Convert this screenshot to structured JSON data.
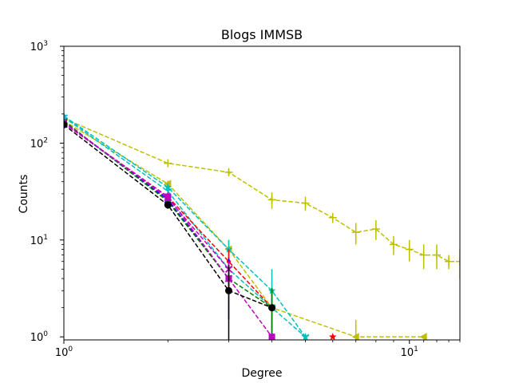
{
  "chart_data": {
    "type": "line",
    "title": "Blogs IMMSB",
    "xlabel": "Degree",
    "ylabel": "Counts",
    "xscale": "log",
    "yscale": "log",
    "xlim": [
      1,
      14
    ],
    "ylim": [
      0.93,
      1000
    ],
    "xticks": [
      {
        "value": 1,
        "base": "10",
        "exp": "0"
      },
      {
        "value": 10,
        "base": "10",
        "exp": "1"
      }
    ],
    "yticks": [
      {
        "value": 1,
        "base": "10",
        "exp": "0"
      },
      {
        "value": 10,
        "base": "10",
        "exp": "1"
      },
      {
        "value": 100,
        "base": "10",
        "exp": "2"
      },
      {
        "value": 1000,
        "base": "10",
        "exp": "3"
      }
    ],
    "grid": false,
    "legend": false,
    "series": [
      {
        "color": "#bfbf00",
        "marker": "plus",
        "style": "dashed",
        "points": [
          [
            1,
            180,
            0
          ],
          [
            2,
            62,
            5
          ],
          [
            3,
            50,
            4
          ],
          [
            4,
            26,
            5
          ],
          [
            5,
            24,
            4
          ],
          [
            6,
            17,
            2
          ],
          [
            7,
            12,
            3
          ],
          [
            8,
            13,
            3
          ],
          [
            9,
            9,
            2
          ],
          [
            10,
            8,
            2
          ],
          [
            11,
            7,
            2
          ],
          [
            12,
            7,
            2
          ],
          [
            13,
            6,
            1
          ],
          [
            14,
            6,
            2
          ]
        ]
      },
      {
        "color": "#bfbf00",
        "marker": "triangle-left",
        "style": "dashed",
        "points": [
          [
            1,
            170,
            0
          ],
          [
            2,
            38,
            3
          ],
          [
            3,
            8,
            2
          ],
          [
            4,
            2,
            0.8
          ],
          [
            7,
            1,
            0.5
          ],
          [
            11,
            1,
            0
          ]
        ]
      },
      {
        "color": "#00bfbf",
        "marker": "star",
        "style": "dashed",
        "points": [
          [
            1,
            190,
            0
          ],
          [
            2,
            35,
            3
          ],
          [
            3,
            8,
            2
          ],
          [
            4,
            3,
            2
          ],
          [
            5,
            1,
            0
          ]
        ]
      },
      {
        "color": "#00bfbf",
        "marker": "tri-down",
        "style": "dashed",
        "points": [
          [
            1,
            185,
            0
          ],
          [
            2,
            32,
            3
          ],
          [
            3,
            5,
            1.5
          ],
          [
            4,
            2,
            1
          ],
          [
            5,
            1,
            0
          ]
        ]
      },
      {
        "color": "#ff0000",
        "marker": "point",
        "style": "dashed",
        "points": [
          [
            1,
            160,
            0
          ],
          [
            2,
            28,
            3
          ],
          [
            3,
            6,
            2
          ],
          [
            4,
            2,
            1
          ]
        ]
      },
      {
        "color": "#ff0000",
        "marker": "star",
        "style": "dashed",
        "points": [
          [
            6,
            1,
            0
          ]
        ]
      },
      {
        "color": "#0000ff",
        "marker": "x",
        "style": "dashed",
        "points": [
          [
            1,
            165,
            0
          ],
          [
            2,
            26,
            2
          ],
          [
            3,
            4,
            2.5
          ]
        ]
      },
      {
        "color": "#008000",
        "marker": "point",
        "style": "dashed",
        "points": [
          [
            1,
            170,
            0
          ],
          [
            2,
            25,
            3
          ],
          [
            3,
            4,
            1
          ],
          [
            4,
            2,
            1.2
          ]
        ]
      },
      {
        "color": "#bf00bf",
        "marker": "x",
        "style": "dashed",
        "points": [
          [
            1,
            165,
            0
          ],
          [
            2,
            27,
            3
          ],
          [
            3,
            5,
            1
          ]
        ]
      },
      {
        "color": "#bf00bf",
        "marker": "square",
        "style": "dashed",
        "points": [
          [
            1,
            160,
            0
          ],
          [
            2,
            28,
            3
          ],
          [
            3,
            4,
            1
          ],
          [
            4,
            1,
            0
          ]
        ]
      },
      {
        "color": "#000000",
        "marker": "circle",
        "style": "dashed",
        "points": [
          [
            1,
            155,
            0
          ],
          [
            2,
            23,
            2
          ],
          [
            3,
            3,
            2.5
          ],
          [
            4,
            2,
            0
          ]
        ]
      }
    ]
  }
}
